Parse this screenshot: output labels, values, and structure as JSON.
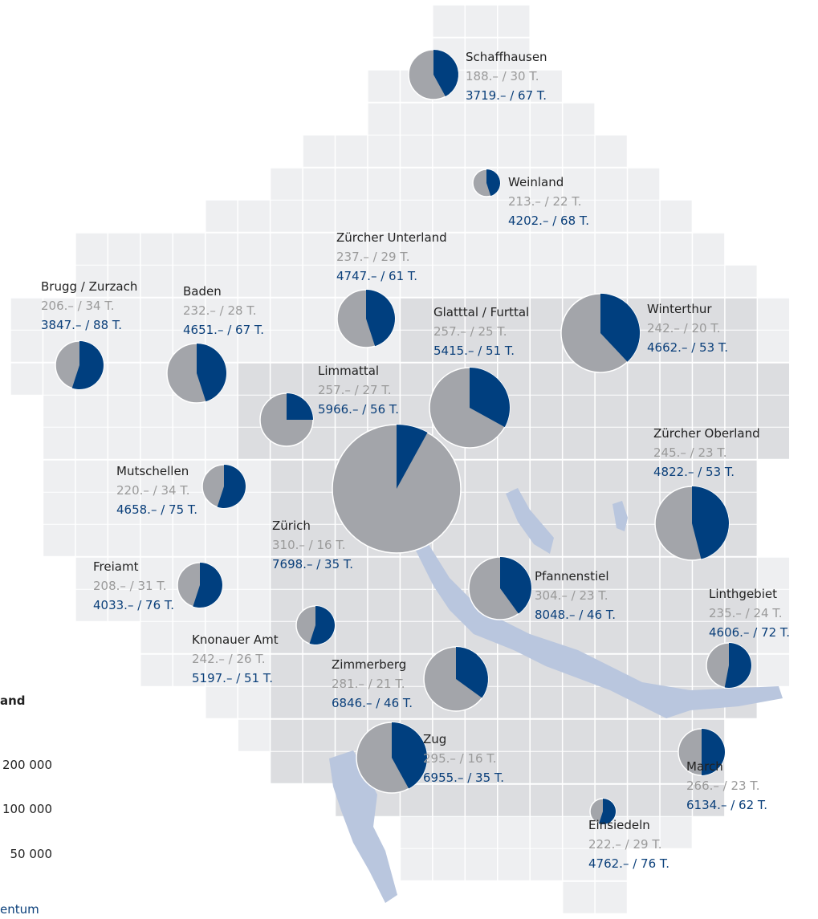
{
  "regions": [
    {
      "name": "Schaffhausen",
      "rent": "188.– / 30 T.",
      "own": "3719.– / 67 T.",
      "share": 42,
      "size": 31500
    },
    {
      "name": "Weinland",
      "rent": "213.– / 22 T.",
      "own": "4202.– / 68 T.",
      "share": 45,
      "size": 9500
    },
    {
      "name": "Zürcher Unterland",
      "rent": "237.– / 29 T.",
      "own": "4747.– / 61 T.",
      "share": 45,
      "size": 42500
    },
    {
      "name": "Brugg / Zurzach",
      "rent": "206.– / 34 T.",
      "own": "3847.– / 88 T.",
      "share": 55,
      "size": 29500
    },
    {
      "name": "Baden",
      "rent": "232.– / 28 T.",
      "own": "4651.– / 67 T.",
      "share": 45,
      "size": 45000
    },
    {
      "name": "Glatttal / Furttal",
      "rent": "257.– / 25 T.",
      "own": "5415.– / 51 T.",
      "share": 33,
      "size": 82000
    },
    {
      "name": "Winterthur",
      "rent": "242.– / 20 T.",
      "own": "4662.– / 53 T.",
      "share": 38,
      "size": 79000
    },
    {
      "name": "Limmattal",
      "rent": "257.– / 27 T.",
      "own": "5966.– / 56 T.",
      "share": 25,
      "size": 35700
    },
    {
      "name": "Zürich",
      "rent": "310.– / 16 T.",
      "own": "7698.– / 35 T.",
      "share": 8,
      "size": 210000
    },
    {
      "name": "Zürcher Oberland",
      "rent": "245.– / 23 T.",
      "own": "4822.– / 53 T.",
      "share": 46,
      "size": 69400
    },
    {
      "name": "Mutschellen",
      "rent": "220.– / 34 T.",
      "own": "4658.– / 75 T.",
      "share": 55,
      "size": 23900
    },
    {
      "name": "Freiamt",
      "rent": "208.– / 31 T.",
      "own": "4033.– / 76 T.",
      "share": 55,
      "size": 25700
    },
    {
      "name": "Pfannenstiel",
      "rent": "304.– / 23 T.",
      "own": "8048.– / 46 T.",
      "share": 40,
      "size": 49900
    },
    {
      "name": "Linthgebiet",
      "rent": "235.– / 24 T.",
      "own": "4606.– / 72 T.",
      "share": 53,
      "size": 25700
    },
    {
      "name": "Knonauer Amt",
      "rent": "242.– / 26 T.",
      "own": "5197.– / 51 T.",
      "share": 55,
      "size": 18900
    },
    {
      "name": "Zimmerberg",
      "rent": "281.– / 21 T.",
      "own": "6846.– / 46 T.",
      "share": 35,
      "size": 52500
    },
    {
      "name": "Zug",
      "rent": "295.– / 16 T.",
      "own": "6955.– / 35 T.",
      "share": 42,
      "size": 63500
    },
    {
      "name": "March",
      "rent": "266.– / 23 T.",
      "own": "6134.– / 62 T.",
      "share": 50,
      "size": 27600
    },
    {
      "name": "Einsiedeln",
      "rent": "222.– / 29 T.",
      "own": "4762.– / 76 T.",
      "share": 55,
      "size": 8400
    }
  ],
  "legend": {
    "title": "and",
    "sizes": [
      "200 000",
      "100 000",
      "50 000"
    ],
    "note": "entum"
  }
}
